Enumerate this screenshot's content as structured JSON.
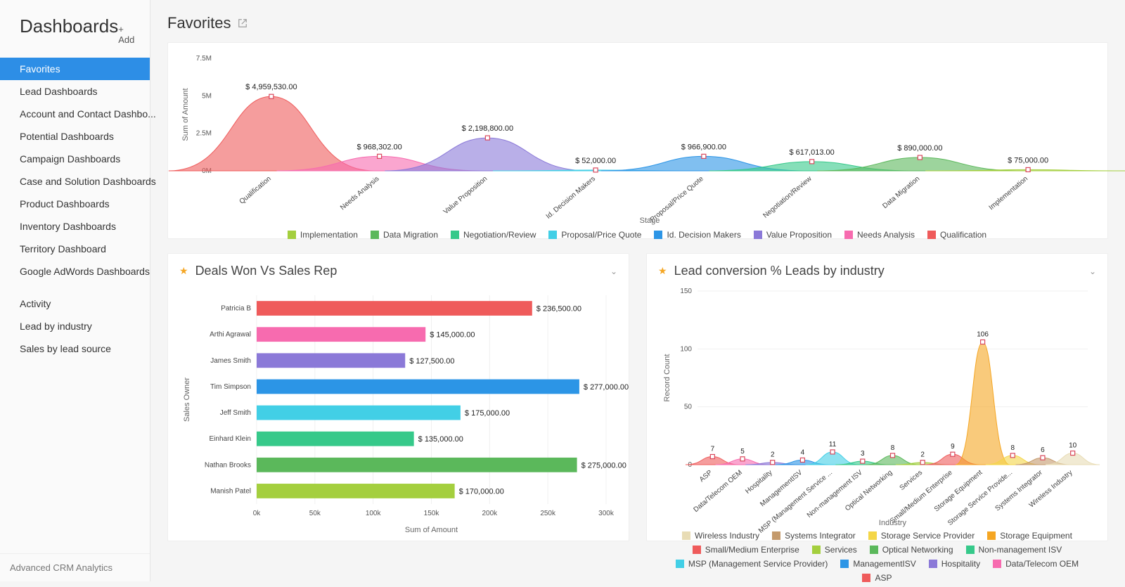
{
  "sidebar": {
    "title": "Dashboards",
    "add_label": "+ Add",
    "footer": "Advanced CRM Analytics",
    "groups": [
      [
        "Favorites",
        "Lead Dashboards",
        "Account and Contact Dashbo...",
        "Potential Dashboards",
        "Campaign Dashboards",
        "Case and Solution Dashboards",
        "Product Dashboards",
        "Inventory Dashboards",
        "Territory Dashboard",
        "Google AdWords Dashboards"
      ],
      [
        "Activity",
        "Lead by industry",
        "Sales by lead source"
      ]
    ],
    "active": "Favorites"
  },
  "page": {
    "title": "Favorites"
  },
  "stage_chart": {
    "y_title": "Sum of Amount",
    "x_title": "Stage",
    "ylim": [
      0,
      7500000
    ],
    "y_ticks": [
      0,
      2500000,
      5000000,
      7500000
    ],
    "y_tick_labels": [
      "0M",
      "2.5M",
      "5M",
      "7.5M"
    ],
    "bg": "#ffffff",
    "marker_border": "#d9475c",
    "categories": [
      "Qualification",
      "Needs Analysis",
      "Value Proposition",
      "Id. Decision Makers",
      "Proposal/Price Quote",
      "Negotiation/Review",
      "Data Migration",
      "Implementation"
    ],
    "values": [
      4959530,
      968302,
      2198800,
      52000,
      966900,
      617013,
      890000,
      75000
    ],
    "value_labels": [
      "$ 4,959,530.00",
      "$ 968,302.00",
      "$ 2,198,800.00",
      "$ 52,000.00",
      "$ 966,900.00",
      "$ 617,013.00",
      "$ 890,000.00",
      "$ 75,000.00"
    ],
    "colors": [
      "#ef5b5b",
      "#f76baf",
      "#8b79d8",
      "#42cfe6",
      "#2c95e6",
      "#36c98a",
      "#5bb85b",
      "#a4cf3e"
    ],
    "legend": [
      {
        "label": "Implementation",
        "color": "#a4cf3e"
      },
      {
        "label": "Data Migration",
        "color": "#5bb85b"
      },
      {
        "label": "Negotiation/Review",
        "color": "#36c98a"
      },
      {
        "label": "Proposal/Price Quote",
        "color": "#42cfe6"
      },
      {
        "label": "Id. Decision Makers",
        "color": "#2c95e6"
      },
      {
        "label": "Value Proposition",
        "color": "#8b79d8"
      },
      {
        "label": "Needs Analysis",
        "color": "#f76baf"
      },
      {
        "label": "Qualification",
        "color": "#ef5b5b"
      }
    ]
  },
  "deals_chart": {
    "title": "Deals Won Vs Sales Rep",
    "y_title": "Sales Owner",
    "x_title": "Sum of Amount",
    "xlim": [
      0,
      300000
    ],
    "x_ticks": [
      0,
      50000,
      100000,
      150000,
      200000,
      250000,
      300000
    ],
    "x_tick_labels": [
      "0k",
      "50k",
      "100k",
      "150k",
      "200k",
      "250k",
      "300k"
    ],
    "bar_height": 0.56,
    "rows": [
      {
        "name": "Patricia B",
        "value": 236500,
        "label": "$ 236,500.00",
        "color": "#ef5b5b"
      },
      {
        "name": "Arthi Agrawal",
        "value": 145000,
        "label": "$ 145,000.00",
        "color": "#f76baf"
      },
      {
        "name": "James Smith",
        "value": 127500,
        "label": "$ 127,500.00",
        "color": "#8b79d8"
      },
      {
        "name": "Tim Simpson",
        "value": 277000,
        "label": "$ 277,000.00",
        "color": "#2c95e6"
      },
      {
        "name": "Jeff Smith",
        "value": 175000,
        "label": "$ 175,000.00",
        "color": "#42cfe6"
      },
      {
        "name": "Einhard Klein",
        "value": 135000,
        "label": "$ 135,000.00",
        "color": "#36c98a"
      },
      {
        "name": "Nathan Brooks",
        "value": 275000,
        "label": "$ 275,000.00",
        "color": "#5bb85b"
      },
      {
        "name": "Manish Patel",
        "value": 170000,
        "label": "$ 170,000.00",
        "color": "#a4cf3e"
      }
    ]
  },
  "leads_chart": {
    "title": "Lead conversion % Leads by industry",
    "y_title": "Record Count",
    "x_title": "Industry",
    "ylim": [
      0,
      150
    ],
    "y_ticks": [
      0,
      50,
      100,
      150
    ],
    "marker_border": "#d9475c",
    "categories": [
      "ASP",
      "Data/Telecom OEM",
      "Hospitality",
      "ManagementISV",
      "MSP (Management Service ...",
      "Non-management ISV",
      "Optical Networking",
      "Services",
      "Small/Medium Enterprise",
      "Storage Equipment",
      "Storage Service Provide...",
      "Systems Integrator",
      "Wireless Industry"
    ],
    "values": [
      7,
      5,
      2,
      4,
      11,
      3,
      8,
      2,
      9,
      106,
      8,
      6,
      10
    ],
    "colors": [
      "#ef5b5b",
      "#f76baf",
      "#8b79d8",
      "#2c95e6",
      "#42cfe6",
      "#36c98a",
      "#5bb85b",
      "#a4cf3e",
      "#ef5b5b",
      "#f5a623",
      "#f4d648",
      "#c49a6c",
      "#e8dcb5"
    ],
    "legend": [
      {
        "label": "Wireless Industry",
        "color": "#e8dcb5"
      },
      {
        "label": "Systems Integrator",
        "color": "#c49a6c"
      },
      {
        "label": "Storage Service Provider",
        "color": "#f4d648"
      },
      {
        "label": "Storage Equipment",
        "color": "#f5a623"
      },
      {
        "label": "Small/Medium Enterprise",
        "color": "#ef5b5b"
      },
      {
        "label": "Services",
        "color": "#a4cf3e"
      },
      {
        "label": "Optical Networking",
        "color": "#5bb85b"
      },
      {
        "label": "Non-management ISV",
        "color": "#36c98a"
      },
      {
        "label": "MSP (Management Service Provider)",
        "color": "#42cfe6"
      },
      {
        "label": "ManagementISV",
        "color": "#2c95e6"
      },
      {
        "label": "Hospitality",
        "color": "#8b79d8"
      },
      {
        "label": "Data/Telecom OEM",
        "color": "#f76baf"
      },
      {
        "label": "ASP",
        "color": "#ef5b5b"
      }
    ]
  }
}
